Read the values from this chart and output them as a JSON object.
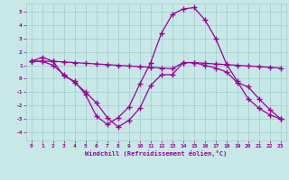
{
  "background_color": "#c8e8e8",
  "grid_color": "#a0cccc",
  "line_color": "#990099",
  "marker": "+",
  "markersize": 4,
  "linewidth": 0.9,
  "xlabel": "Windchill (Refroidissement éolien,°C)",
  "xlim": [
    -0.5,
    23.5
  ],
  "ylim": [
    -4.6,
    5.6
  ],
  "yticks": [
    -4,
    -3,
    -2,
    -1,
    0,
    1,
    2,
    3,
    4,
    5
  ],
  "xticks": [
    0,
    1,
    2,
    3,
    4,
    5,
    6,
    7,
    8,
    9,
    10,
    11,
    12,
    13,
    14,
    15,
    16,
    17,
    18,
    19,
    20,
    21,
    22,
    23
  ],
  "series": [
    [
      1.3,
      1.6,
      1.3,
      0.2,
      -0.2,
      -1.2,
      -2.8,
      -3.4,
      -2.9,
      -2.1,
      -0.4,
      1.2,
      3.4,
      4.8,
      5.2,
      5.3,
      4.4,
      3.0,
      1.1,
      -0.2,
      -1.5,
      -2.2,
      -2.7,
      -3.0
    ],
    [
      1.3,
      1.3,
      1.3,
      1.25,
      1.2,
      1.15,
      1.1,
      1.05,
      1.0,
      0.95,
      0.9,
      0.85,
      0.8,
      0.75,
      1.2,
      1.2,
      1.15,
      1.1,
      1.05,
      1.0,
      0.95,
      0.9,
      0.85,
      0.8
    ],
    [
      1.3,
      1.3,
      1.0,
      0.3,
      -0.3,
      -1.0,
      -1.8,
      -2.9,
      -3.6,
      -3.1,
      -2.2,
      -0.5,
      0.3,
      0.3,
      1.2,
      1.2,
      1.0,
      0.8,
      0.5,
      -0.3,
      -0.6,
      -1.5,
      -2.3,
      -3.0
    ]
  ]
}
